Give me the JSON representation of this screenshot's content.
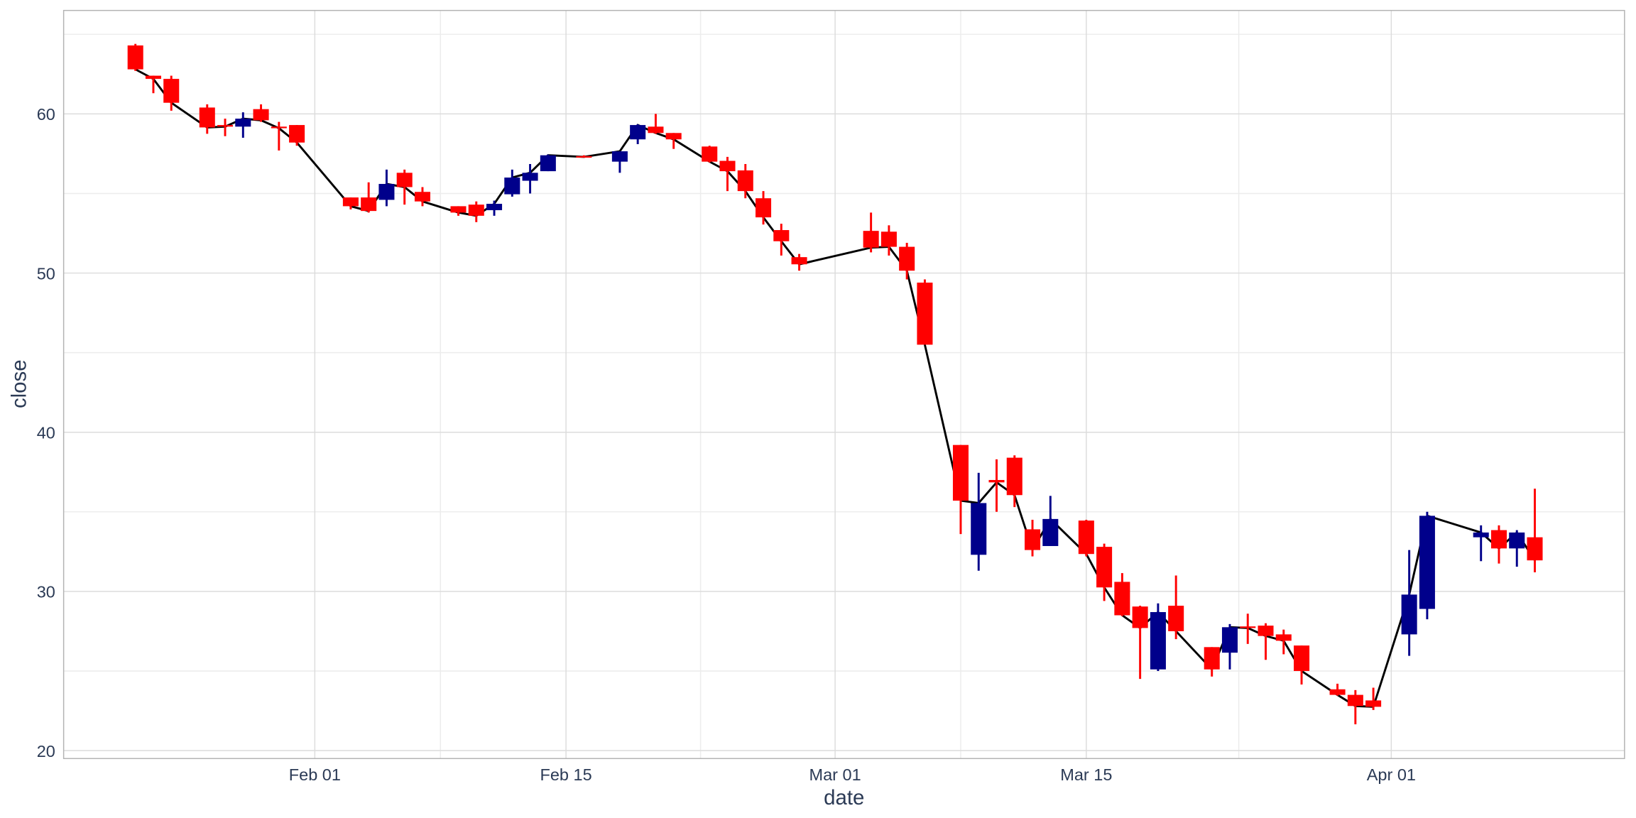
{
  "chart_data": {
    "type": "candlestick",
    "x_label": "date",
    "y_label": "close",
    "x": [
      "01-22",
      "01-23",
      "01-24",
      "01-26",
      "01-27",
      "01-28",
      "01-29",
      "01-30",
      "01-31",
      "02-03",
      "02-04",
      "02-05",
      "02-06",
      "02-07",
      "02-09",
      "02-10",
      "02-11",
      "02-12",
      "02-13",
      "02-14",
      "02-16",
      "02-18",
      "02-19",
      "02-20",
      "02-21",
      "02-23",
      "02-24",
      "02-25",
      "02-26",
      "02-27",
      "02-28",
      "03-03",
      "03-04",
      "03-05",
      "03-06",
      "03-08",
      "03-09",
      "03-10",
      "03-11",
      "03-12",
      "03-13",
      "03-15",
      "03-16",
      "03-17",
      "03-18",
      "03-19",
      "03-20",
      "03-22",
      "03-23",
      "03-24",
      "03-25",
      "03-26",
      "03-27",
      "03-29",
      "03-30",
      "03-31",
      "04-02",
      "04-03",
      "04-06",
      "04-07",
      "04-08",
      "04-09"
    ],
    "open": [
      64.3,
      62.4,
      62.2,
      60.4,
      59.3,
      59.2,
      60.3,
      59.2,
      59.3,
      54.75,
      54.75,
      54.6,
      56.3,
      55.1,
      54.2,
      54.3,
      53.95,
      54.95,
      55.8,
      56.4,
      57.35,
      57.0,
      58.4,
      59.2,
      58.8,
      57.95,
      57.05,
      56.45,
      54.7,
      52.7,
      51.0,
      52.65,
      52.6,
      51.65,
      49.4,
      39.2,
      32.3,
      37.0,
      38.4,
      33.9,
      32.85,
      34.45,
      32.8,
      30.6,
      29.05,
      25.1,
      29.1,
      26.5,
      26.15,
      27.8,
      27.85,
      27.3,
      26.6,
      23.85,
      23.5,
      23.15,
      27.3,
      28.9,
      33.4,
      33.85,
      32.7,
      33.4
    ],
    "high": [
      64.4,
      62.4,
      62.4,
      60.6,
      59.7,
      60.1,
      60.6,
      59.5,
      59.3,
      54.75,
      55.7,
      56.5,
      56.5,
      55.4,
      54.2,
      54.5,
      54.55,
      56.5,
      56.85,
      57.45,
      57.4,
      57.65,
      59.35,
      60.0,
      58.8,
      58.0,
      57.3,
      56.85,
      55.15,
      53.1,
      51.2,
      53.8,
      53.0,
      51.9,
      49.6,
      39.2,
      37.45,
      38.3,
      38.55,
      34.5,
      36.0,
      34.5,
      33.0,
      31.15,
      29.1,
      29.25,
      31.0,
      26.5,
      27.95,
      28.6,
      28.0,
      27.6,
      26.6,
      24.2,
      23.8,
      23.95,
      32.6,
      35.0,
      34.15,
      34.15,
      33.85,
      36.45
    ],
    "low": [
      62.7,
      61.3,
      60.2,
      58.75,
      58.6,
      58.5,
      59.5,
      57.7,
      58.0,
      54.0,
      53.8,
      54.2,
      54.3,
      54.2,
      53.6,
      53.2,
      53.6,
      54.8,
      55.0,
      56.4,
      57.25,
      56.3,
      58.1,
      58.75,
      57.8,
      56.95,
      55.15,
      54.7,
      53.05,
      51.1,
      50.15,
      51.3,
      51.1,
      49.6,
      45.5,
      33.6,
      31.3,
      35.0,
      35.3,
      32.2,
      32.85,
      32.2,
      29.4,
      28.45,
      24.5,
      25.0,
      27.0,
      24.65,
      25.1,
      26.7,
      25.7,
      26.05,
      24.15,
      23.45,
      21.65,
      22.55,
      25.95,
      28.25,
      31.9,
      31.75,
      31.55,
      31.2
    ],
    "close": [
      62.8,
      62.2,
      60.7,
      59.15,
      59.2,
      59.7,
      59.6,
      59.1,
      58.2,
      54.2,
      53.9,
      55.6,
      55.4,
      54.5,
      53.8,
      53.6,
      54.35,
      56.0,
      56.3,
      57.4,
      57.3,
      57.65,
      59.3,
      58.8,
      58.4,
      57.0,
      56.4,
      55.15,
      53.5,
      52.0,
      50.55,
      51.6,
      51.65,
      50.15,
      45.5,
      35.7,
      35.55,
      36.85,
      36.05,
      32.6,
      34.55,
      32.35,
      30.25,
      28.5,
      27.7,
      28.7,
      27.5,
      25.1,
      27.75,
      27.7,
      27.2,
      26.9,
      25.0,
      23.5,
      22.8,
      22.75,
      29.8,
      34.75,
      33.7,
      32.7,
      33.7,
      31.95
    ],
    "increasing_color": "#00008b",
    "decreasing_color": "#ff0000",
    "line_color": "#000000",
    "xlim": [
      "01-18",
      "04-14"
    ],
    "xticks": [
      {
        "value": "02-01",
        "label": "Feb 01"
      },
      {
        "value": "02-15",
        "label": "Feb 15"
      },
      {
        "value": "03-01",
        "label": "Mar 01"
      },
      {
        "value": "03-15",
        "label": "Mar 15"
      },
      {
        "value": "04-01",
        "label": "Apr 01"
      }
    ],
    "ylim": [
      19.5,
      66.5
    ],
    "yticks": [
      20,
      30,
      40,
      50,
      60
    ],
    "grid": true
  }
}
